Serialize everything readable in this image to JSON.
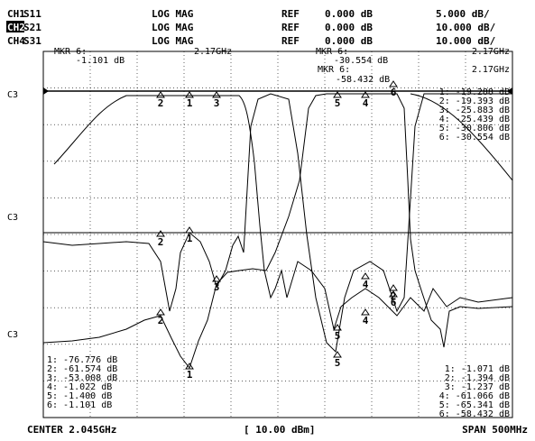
{
  "header": {
    "rows": [
      [
        "CH1",
        "S11",
        "LOG MAG",
        "REF",
        "0.000 dB",
        "5.000 dB/"
      ],
      [
        "CH2",
        "S21",
        "LOG MAG",
        "REF",
        "0.000 dB",
        "10.000 dB/"
      ],
      [
        "CH4",
        "S31",
        "LOG MAG",
        "REF",
        "0.000 dB",
        "10.000 dB/"
      ]
    ]
  },
  "channel_labels": [
    "C3",
    "C3",
    "C3"
  ],
  "marker_readouts": [
    {
      "label": "MKR 6:",
      "value": "-1.101 dB",
      "freq": "2.17GHz"
    },
    {
      "label": "MKR 6:",
      "value": "-30.554 dB",
      "freq": "2.17GHz"
    },
    {
      "label": "MKR 6:",
      "value": "-58.432 dB",
      "freq": "2.17GHz"
    }
  ],
  "marker_lists": {
    "top_right": [
      "1: -19.288 dB",
      "2: -19.393 dB",
      "3: -25.883 dB",
      "4: -25.439 dB",
      "5: -30.806 dB",
      "6: -30.554 dB"
    ],
    "bottom_left": [
      "1: -76.776 dB",
      "2: -61.574 dB",
      "3: -53.008 dB",
      "4: -1.022 dB",
      "5: -1.400 dB",
      "6: -1.101 dB"
    ],
    "bottom_right": [
      "1: -1.071 dB",
      "2: -1.394 dB",
      "3: -1.237 dB",
      "4: -61.066 dB",
      "5: -65.341 dB",
      "6: -58.432 dB"
    ]
  },
  "markers": [
    "2",
    "1",
    "3",
    "5",
    "4",
    "6",
    "2",
    "1",
    "3",
    "4",
    "2",
    "6",
    "2",
    "1",
    "4",
    "5",
    "5"
  ],
  "footer": {
    "center": "CENTER 2.045GHz",
    "power": "[ 10.00 dBm]",
    "span": "SPAN 500MHz"
  }
}
